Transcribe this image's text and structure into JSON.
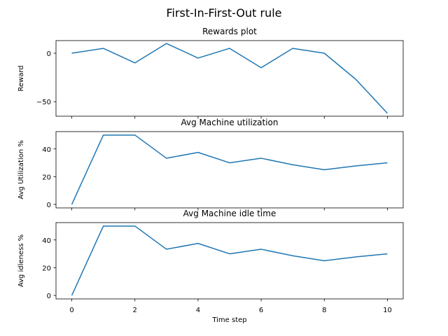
{
  "figure": {
    "suptitle": "First-In-First-Out rule",
    "line_color": "#1f77b4"
  },
  "chart_data": [
    {
      "type": "line",
      "title": "Rewards plot",
      "xlabel": "",
      "ylabel": "Reward",
      "x": [
        0,
        1,
        2,
        3,
        4,
        5,
        6,
        7,
        8,
        9,
        10
      ],
      "series": [
        {
          "values": [
            0,
            5,
            -10,
            10,
            -5,
            5,
            -15,
            5,
            0,
            -27,
            -62
          ]
        }
      ],
      "xlim": [
        -0.5,
        10.5
      ],
      "ylim": [
        -65,
        13
      ],
      "yticks": [
        0,
        -50
      ],
      "xticks": [
        0,
        2,
        4,
        6,
        8,
        10
      ],
      "show_xtick_labels": false,
      "grid": false
    },
    {
      "type": "line",
      "title": "Avg Machine utilization",
      "xlabel": "",
      "ylabel": "Avg Utilization %",
      "x": [
        0,
        1,
        2,
        3,
        4,
        5,
        6,
        7,
        8,
        9,
        10
      ],
      "series": [
        {
          "values": [
            0,
            50,
            50,
            33.3,
            37.5,
            30,
            33.3,
            28.6,
            25,
            27.8,
            30
          ]
        }
      ],
      "xlim": [
        -0.5,
        10.5
      ],
      "ylim": [
        -2.5,
        52.5
      ],
      "yticks": [
        0,
        20,
        40
      ],
      "xticks": [
        0,
        2,
        4,
        6,
        8,
        10
      ],
      "show_xtick_labels": false,
      "grid": false
    },
    {
      "type": "line",
      "title": "Avg Machine idle time",
      "xlabel": "Time step",
      "ylabel": "Avg idleness %",
      "x": [
        0,
        1,
        2,
        3,
        4,
        5,
        6,
        7,
        8,
        9,
        10
      ],
      "series": [
        {
          "values": [
            0,
            50,
            50,
            33.3,
            37.5,
            30,
            33.3,
            28.6,
            25,
            27.8,
            30
          ]
        }
      ],
      "xlim": [
        -0.5,
        10.5
      ],
      "ylim": [
        -2.5,
        52.5
      ],
      "yticks": [
        0,
        20,
        40
      ],
      "xticks": [
        0,
        2,
        4,
        6,
        8,
        10
      ],
      "show_xtick_labels": true,
      "grid": false
    }
  ]
}
